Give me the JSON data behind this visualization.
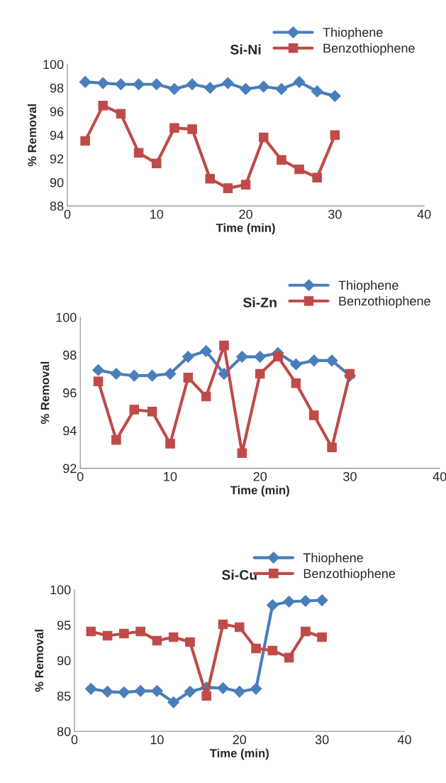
{
  "chart_data": [
    {
      "type": "line",
      "title": "Si-Ni",
      "xlabel": "Time (min)",
      "ylabel": "% Removal",
      "x": [
        2,
        4,
        6,
        8,
        10,
        12,
        14,
        16,
        18,
        20,
        22,
        24,
        26,
        28,
        30
      ],
      "xlim": [
        0,
        40
      ],
      "xticks": [
        0,
        10,
        20,
        30,
        40
      ],
      "ylim": [
        88,
        100
      ],
      "yticks": [
        88,
        90,
        92,
        94,
        96,
        98,
        100
      ],
      "grid": false,
      "legend": "top right",
      "series": [
        {
          "name": "Thiophene",
          "color": "#4a7ebb",
          "marker": "diamond",
          "values": [
            98.5,
            98.4,
            98.3,
            98.3,
            98.3,
            97.9,
            98.3,
            98.0,
            98.4,
            97.9,
            98.1,
            97.9,
            98.5,
            97.7,
            97.3
          ]
        },
        {
          "name": "Benzothiophene",
          "color": "#be4b48",
          "marker": "square",
          "values": [
            93.5,
            96.5,
            95.8,
            92.5,
            91.6,
            94.6,
            94.5,
            90.3,
            89.5,
            89.8,
            93.8,
            91.9,
            91.1,
            90.4,
            94.0
          ]
        }
      ]
    },
    {
      "type": "line",
      "title": "Si-Zn",
      "xlabel": "Time (min)",
      "ylabel": "% Removal",
      "x": [
        2,
        4,
        6,
        8,
        10,
        12,
        14,
        16,
        18,
        20,
        22,
        24,
        26,
        28,
        30
      ],
      "xlim": [
        0,
        40
      ],
      "xticks": [
        0,
        10,
        20,
        30,
        40
      ],
      "ylim": [
        92,
        100
      ],
      "yticks": [
        92,
        94,
        96,
        98,
        100
      ],
      "grid": false,
      "legend": "top right",
      "series": [
        {
          "name": "Thiophene",
          "color": "#4a7ebb",
          "marker": "diamond",
          "values": [
            97.2,
            97.0,
            96.9,
            96.9,
            97.0,
            97.9,
            98.2,
            97.0,
            97.9,
            97.9,
            98.1,
            97.5,
            97.7,
            97.7,
            96.9
          ]
        },
        {
          "name": "Benzothiophene",
          "color": "#be4b48",
          "marker": "square",
          "values": [
            96.6,
            93.5,
            95.1,
            95.0,
            93.3,
            96.8,
            95.8,
            98.5,
            92.8,
            97.0,
            97.9,
            96.5,
            94.8,
            93.1,
            97.0
          ]
        }
      ]
    },
    {
      "type": "line",
      "title": "Si-Cu",
      "xlabel": "Time (min)",
      "ylabel": "% Removal",
      "x": [
        2,
        4,
        6,
        8,
        10,
        12,
        14,
        16,
        18,
        20,
        22,
        24,
        26,
        28,
        30
      ],
      "xlim": [
        0,
        40
      ],
      "xticks": [
        0,
        10,
        20,
        30,
        40
      ],
      "ylim": [
        80,
        100
      ],
      "yticks": [
        80,
        85,
        90,
        95,
        100
      ],
      "grid": false,
      "legend": "top right",
      "series": [
        {
          "name": "Thiophene",
          "color": "#4a7ebb",
          "marker": "diamond",
          "values": [
            86.0,
            85.6,
            85.5,
            85.7,
            85.7,
            84.1,
            85.6,
            86.2,
            86.1,
            85.6,
            86.0,
            97.8,
            98.3,
            98.4,
            98.5
          ]
        },
        {
          "name": "Benzothiophene",
          "color": "#be4b48",
          "marker": "square",
          "values": [
            94.1,
            93.5,
            93.8,
            94.1,
            92.8,
            93.3,
            92.6,
            85.0,
            95.1,
            94.7,
            91.7,
            91.4,
            90.4,
            94.1,
            93.3
          ]
        }
      ]
    }
  ]
}
